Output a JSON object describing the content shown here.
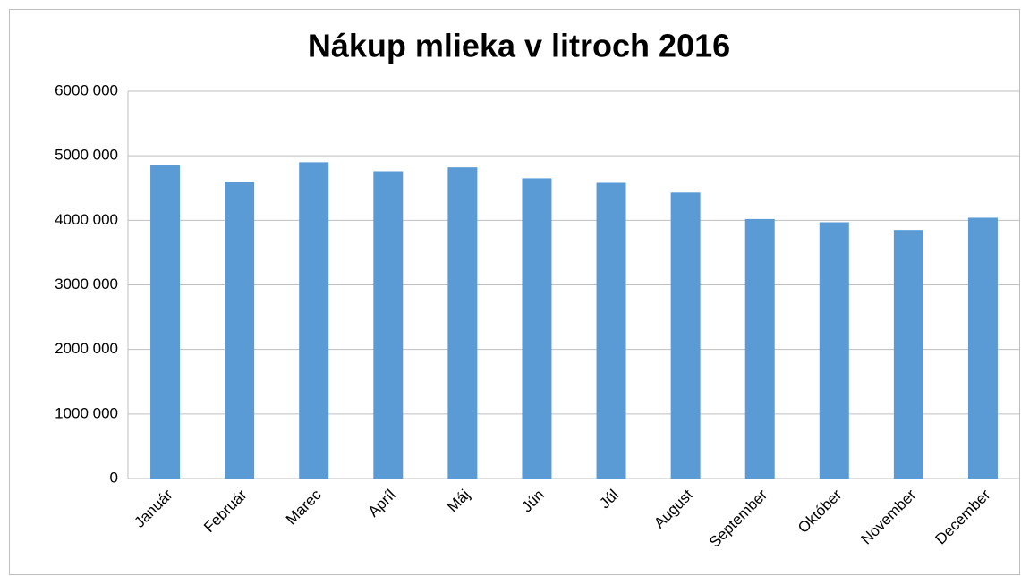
{
  "chart_data": {
    "type": "bar",
    "title": "Nákup mlieka v litroch 2016",
    "categories": [
      "Január",
      "Február",
      "Marec",
      "Apríl",
      "Máj",
      "Jún",
      "Júl",
      "August",
      "September",
      "Október",
      "November",
      "December"
    ],
    "values": [
      4860000,
      4600000,
      4900000,
      4760000,
      4820000,
      4650000,
      4580000,
      4430000,
      4020000,
      3970000,
      3850000,
      4040000
    ],
    "color": "#5b9bd5",
    "ylim": [
      0,
      6000000
    ],
    "yticks": [
      0,
      {
        "value": 1000000,
        "label": "1000 000"
      },
      {
        "value": 2000000,
        "label": "2000 000"
      },
      {
        "value": 3000000,
        "label": "3000 000"
      },
      {
        "value": 4000000,
        "label": "4000 000"
      },
      {
        "value": 5000000,
        "label": "5000 000"
      },
      {
        "value": 6000000,
        "label": "6000 000"
      }
    ],
    "grid": true
  }
}
